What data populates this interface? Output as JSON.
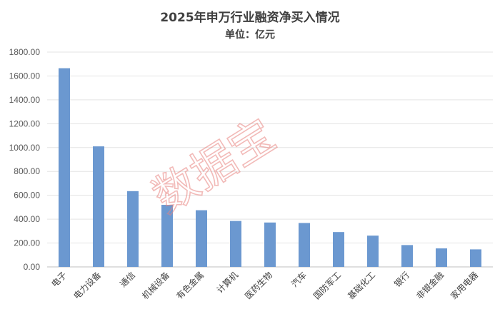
{
  "chart_data": {
    "type": "bar",
    "title": "2025年申万行业融资净买入情况",
    "subtitle": "单位：亿元",
    "categories": [
      "电子",
      "电力设备",
      "通信",
      "机械设备",
      "有色金属",
      "计算机",
      "医药生物",
      "汽车",
      "国防军工",
      "基础化工",
      "银行",
      "非银金融",
      "家用电器"
    ],
    "values": [
      1665,
      1010,
      635,
      520,
      475,
      385,
      372,
      368,
      292,
      262,
      183,
      155,
      147
    ],
    "ylim": [
      0,
      1800
    ],
    "yticks": [
      "0.00",
      "200.00",
      "400.00",
      "600.00",
      "800.00",
      "1000.00",
      "1200.00",
      "1400.00",
      "1600.00",
      "1800.00"
    ],
    "grid": true,
    "bar_color": "#6b98d0"
  },
  "watermark": "数据宝"
}
